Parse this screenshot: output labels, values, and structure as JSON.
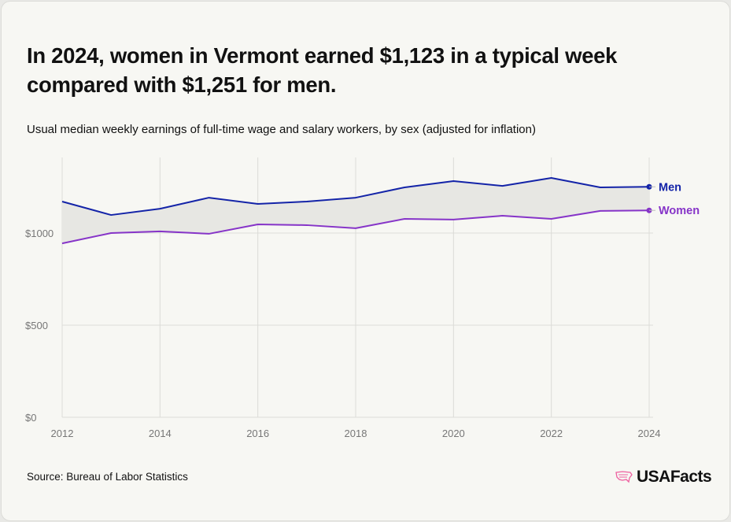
{
  "title": "In 2024, women in Vermont earned $1,123 in a typical week compared with $1,251 for men.",
  "subtitle": "Usual median weekly earnings of full-time wage and salary workers, by sex (adjusted for inflation)",
  "source": "Source: Bureau of Labor Statistics",
  "logo_text": "USAFacts",
  "colors": {
    "men": "#1424a8",
    "women": "#8634c8",
    "band": "#e7e7e3",
    "grid": "#dcdcd8"
  },
  "chart_data": {
    "type": "line",
    "title": "In 2024, women in Vermont earned $1,123 in a typical week compared with $1,251 for men.",
    "x": [
      2012,
      2013,
      2014,
      2015,
      2016,
      2017,
      2018,
      2019,
      2020,
      2021,
      2022,
      2023,
      2024
    ],
    "series": [
      {
        "name": "Men",
        "values": [
          1171,
          1098,
          1132,
          1192,
          1158,
          1171,
          1192,
          1248,
          1282,
          1256,
          1299,
          1248,
          1251
        ]
      },
      {
        "name": "Women",
        "values": [
          944,
          1000,
          1009,
          996,
          1047,
          1043,
          1026,
          1077,
          1073,
          1094,
          1077,
          1120,
          1123
        ]
      }
    ],
    "xticks": [
      "2012",
      "2014",
      "2016",
      "2018",
      "2020",
      "2022",
      "2024"
    ],
    "yticks": [
      {
        "v": 0,
        "label": "$0"
      },
      {
        "v": 500,
        "label": "$500"
      },
      {
        "v": 1000,
        "label": "$1000"
      }
    ],
    "ylim": [
      0,
      1400
    ],
    "xlim": [
      2012,
      2024
    ],
    "grid": true,
    "legend": "end-of-line labels"
  }
}
